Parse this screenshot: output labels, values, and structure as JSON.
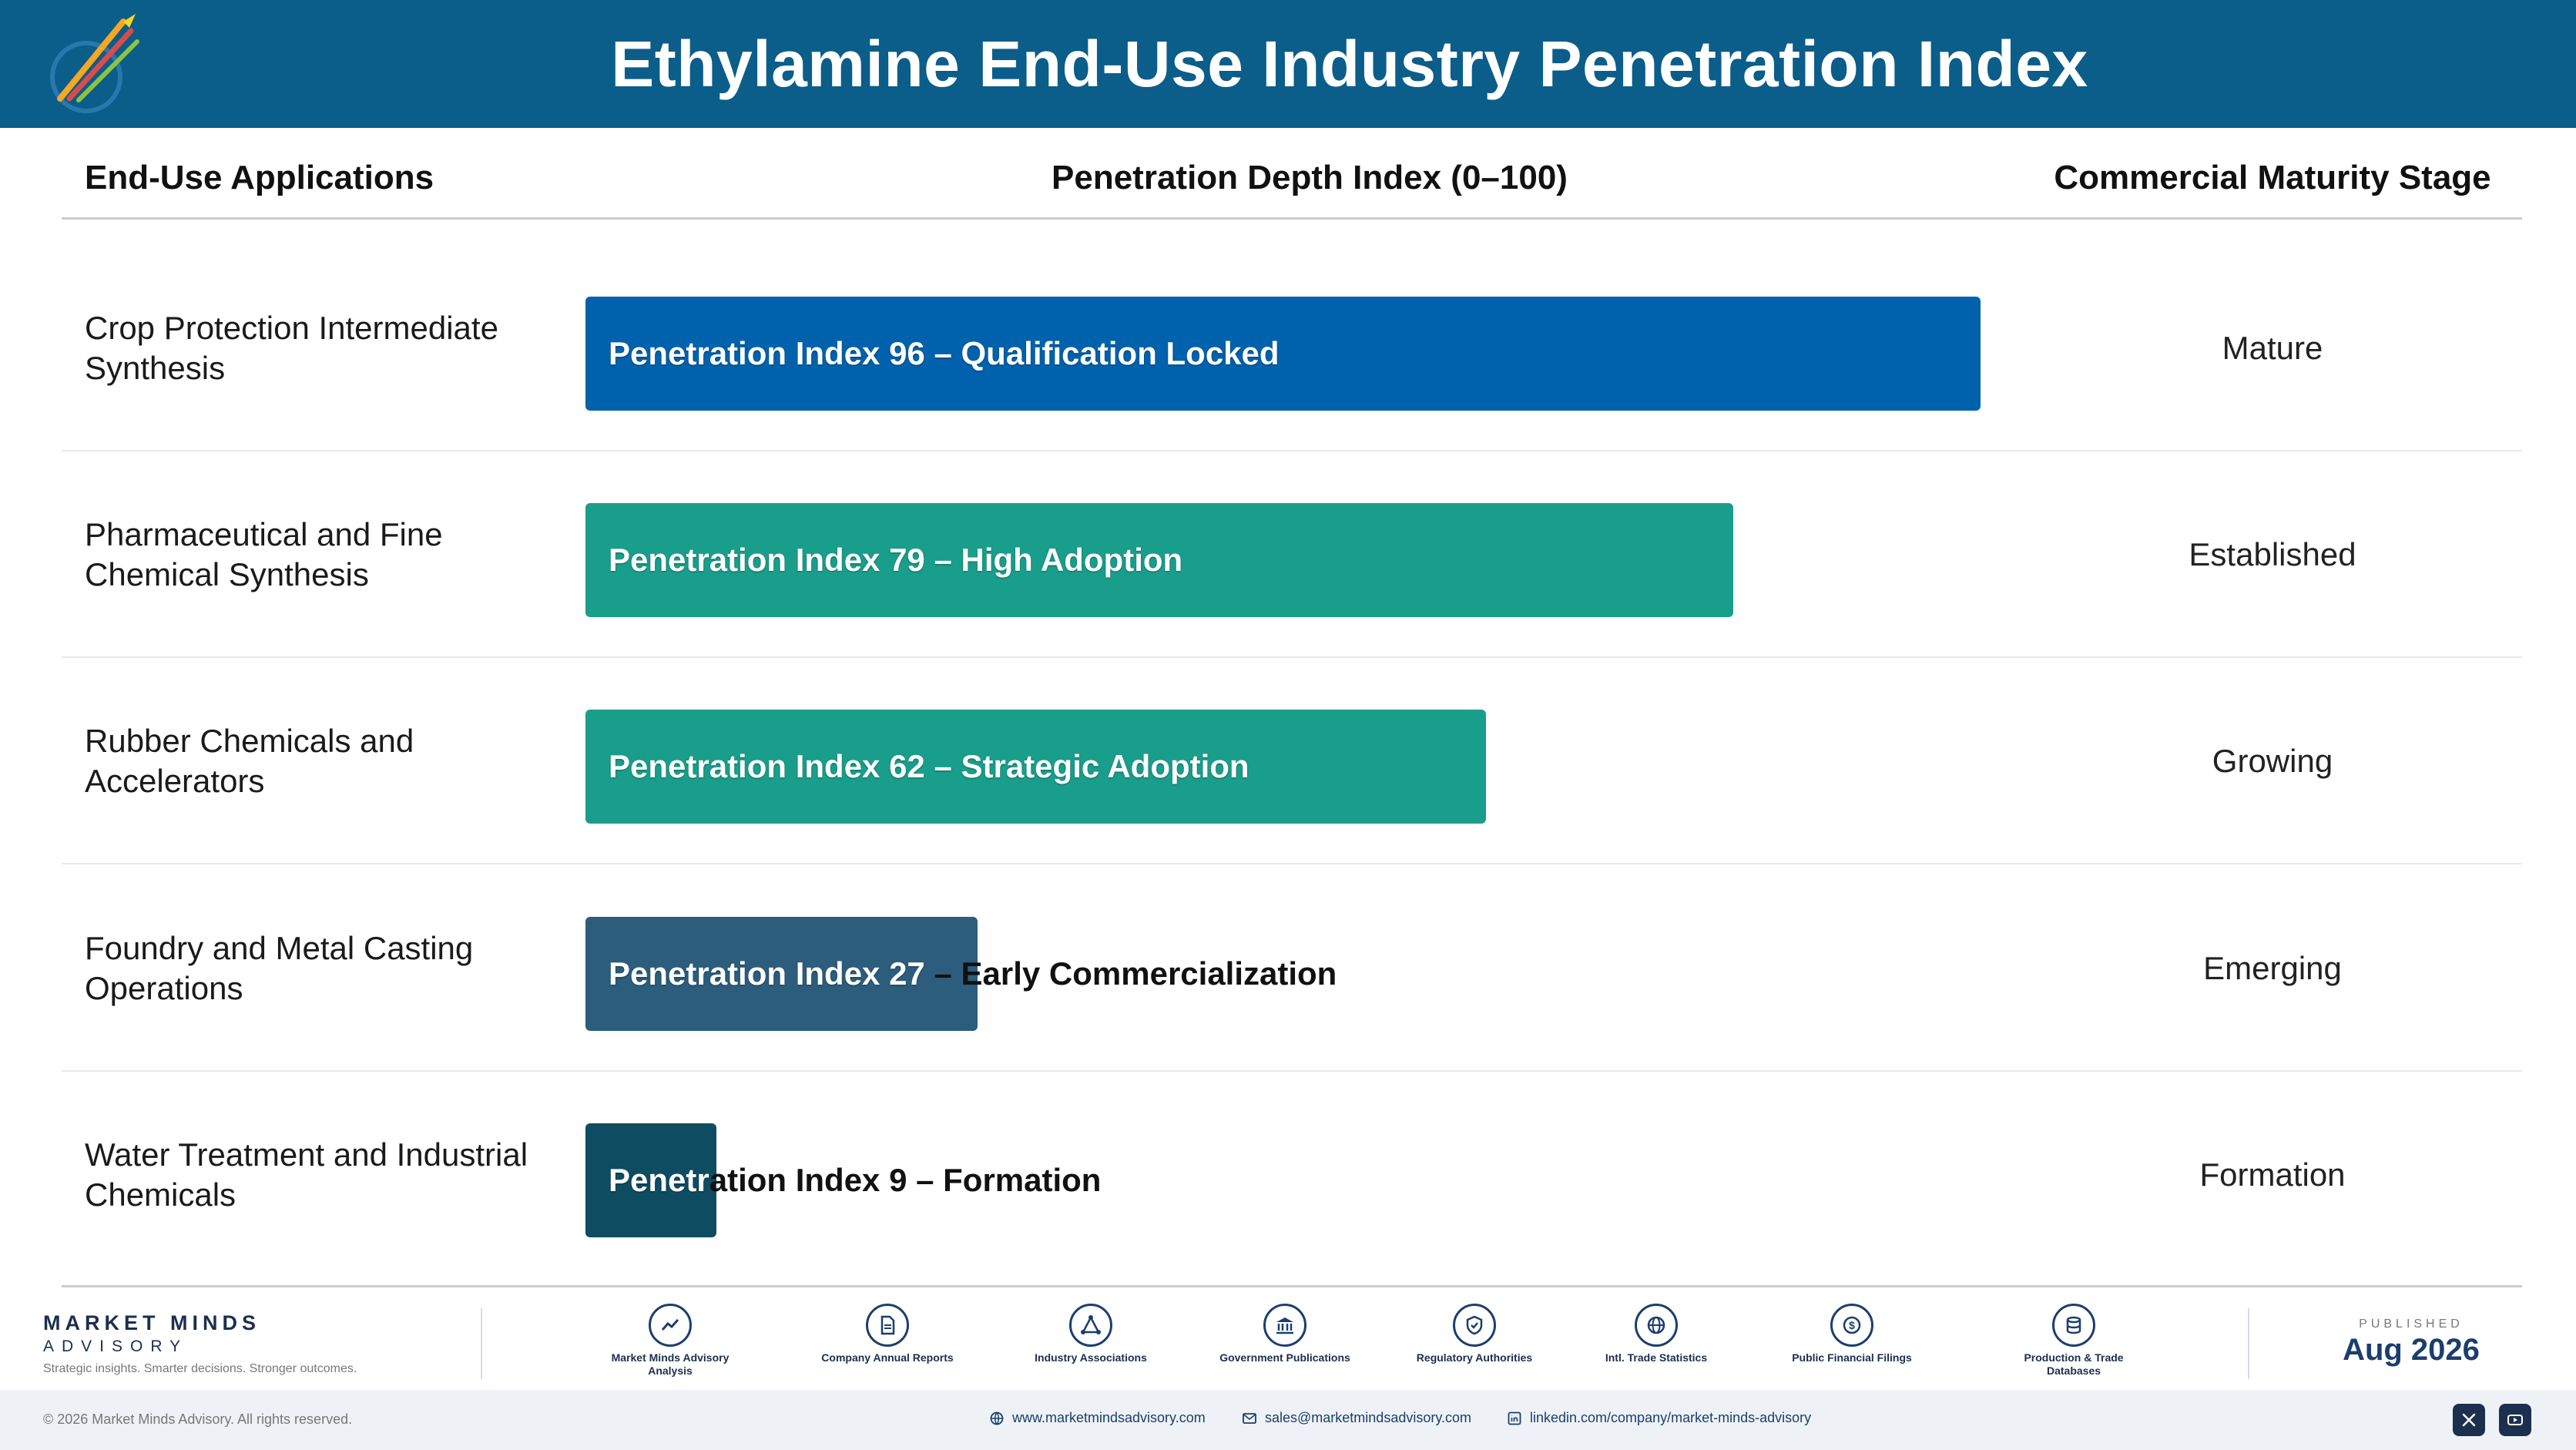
{
  "header": {
    "title": "Ethylamine End-Use Industry Penetration Index"
  },
  "columns": {
    "applications": "End-Use Applications",
    "index": "Penetration Depth Index (0–100)",
    "stage": "Commercial Maturity Stage"
  },
  "chart_data": {
    "type": "bar",
    "orientation": "horizontal",
    "xlim": [
      0,
      100
    ],
    "title": "Ethylamine End-Use Industry Penetration Index",
    "categories": [
      "Crop Protection Intermediate Synthesis",
      "Pharmaceutical and Fine Chemical Synthesis",
      "Rubber Chemicals and Accelerators",
      "Foundry and Metal Casting Operations",
      "Water Treatment and Industrial Chemicals"
    ],
    "values": [
      96,
      79,
      62,
      27,
      9
    ],
    "rows": [
      {
        "application": "Crop Protection Intermediate Synthesis",
        "value": 96,
        "label": "Penetration Index 96 – Qualification Locked",
        "stage": "Mature",
        "color": "#0062ac"
      },
      {
        "application": "Pharmaceutical and Fine Chemical Synthesis",
        "value": 79,
        "label": "Penetration Index 79 – High Adoption",
        "stage": "Established",
        "color": "#1a9e8c"
      },
      {
        "application": "Rubber Chemicals and Accelerators",
        "value": 62,
        "label": "Penetration Index 62 – Strategic Adoption",
        "stage": "Growing",
        "color": "#1a9e8c"
      },
      {
        "application": "Foundry and Metal Casting Operations",
        "value": 27,
        "label": "Penetration Index 27 – Early Commercialization",
        "stage": "Emerging",
        "color": "#2c5d7c"
      },
      {
        "application": "Water Treatment and Industrial Chemicals",
        "value": 9,
        "label": "Penetration Index 9 – Formation",
        "stage": "Formation",
        "color": "#0e4d61"
      }
    ]
  },
  "footer": {
    "brand_name": "MARKET MINDS",
    "brand_sub": "ADVISORY",
    "tagline": "Strategic insights. Smarter decisions. Stronger outcomes.",
    "sources": [
      {
        "label": "Market Minds Advisory Analysis",
        "icon": "trend-chart-icon"
      },
      {
        "label": "Company Annual Reports",
        "icon": "document-icon"
      },
      {
        "label": "Industry Associations",
        "icon": "network-icon"
      },
      {
        "label": "Government Publications",
        "icon": "government-building-icon"
      },
      {
        "label": "Regulatory Authorities",
        "icon": "shield-check-icon"
      },
      {
        "label": "Intl. Trade Statistics",
        "icon": "globe-icon"
      },
      {
        "label": "Public Financial Filings",
        "icon": "currency-icon"
      },
      {
        "label": "Production & Trade Databases",
        "icon": "database-icon"
      }
    ],
    "published_label": "PUBLISHED",
    "published_date": "Aug 2026",
    "copyright": "© 2026 Market Minds Advisory. All rights reserved.",
    "website": "www.marketmindsadvisory.com",
    "email": "sales@marketmindsadvisory.com",
    "linkedin": "linkedin.com/company/market-minds-advisory"
  }
}
